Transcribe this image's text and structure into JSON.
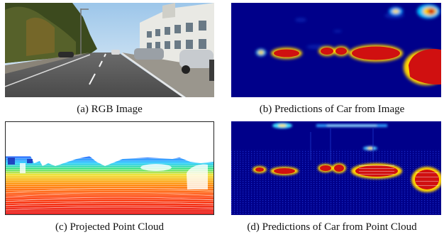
{
  "panels": [
    {
      "id": "a",
      "caption": "(a) RGB Image"
    },
    {
      "id": "b",
      "caption": "(b) Predictions of Car from Image"
    },
    {
      "id": "c",
      "caption": "(c) Projected Point Cloud"
    },
    {
      "id": "d",
      "caption": "(d) Predictions of Car from Point Cloud"
    }
  ],
  "colors": {
    "heatmap_background": "#00008a",
    "heatmap_hot": "#d01010",
    "heatmap_edge": "#ffd700",
    "sky": "#cfe3f5",
    "road": "#5a5a5a"
  }
}
